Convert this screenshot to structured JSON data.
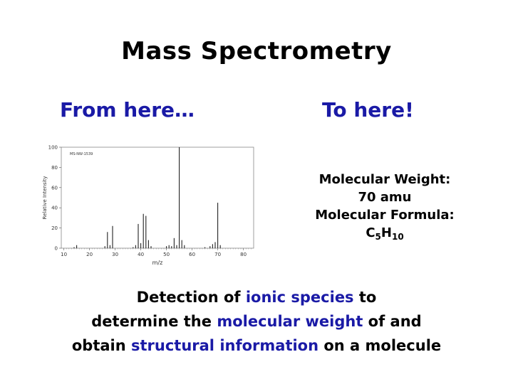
{
  "slide": {
    "title": "Mass Spectrometry",
    "from_label": "From here…",
    "to_label": "To here!"
  },
  "molecule": {
    "weight_label": "Molecular Weight:",
    "weight_value": "70 amu",
    "formula_label": "Molecular Formula:",
    "formula_c": "C",
    "formula_c_sub": "5",
    "formula_h": "H",
    "formula_h_sub": "10"
  },
  "description": {
    "p1": "Detection of ",
    "hl1": "ionic species",
    "p2": " to",
    "p3": "determine the ",
    "hl2": "molecular weight",
    "p4": " of and",
    "p5": "obtain ",
    "hl3": "structural information",
    "p6": " on a molecule"
  },
  "colors": {
    "accent": "#1a1aa6",
    "plot_frame": "#888888",
    "peak": "#222222"
  },
  "chart_data": {
    "type": "bar",
    "xlabel": "m/z",
    "ylabel": "Relative Intensity",
    "inset_label": "MS-NW-1539",
    "xlim": [
      9,
      84
    ],
    "ylim": [
      0,
      100
    ],
    "x_ticks": [
      10,
      20,
      30,
      40,
      50,
      60,
      70,
      80
    ],
    "y_ticks": [
      0,
      20,
      40,
      60,
      80,
      100
    ],
    "x": [
      14,
      15,
      26,
      27,
      28,
      29,
      37,
      38,
      39,
      40,
      41,
      42,
      43,
      44,
      50,
      51,
      52,
      53,
      54,
      55,
      56,
      57,
      65,
      67,
      68,
      69,
      70,
      71
    ],
    "values": [
      1,
      3,
      2,
      16,
      3,
      22,
      1,
      3,
      24,
      5,
      34,
      32,
      8,
      2,
      2,
      3,
      2,
      10,
      3,
      100,
      8,
      3,
      1,
      2,
      4,
      6,
      45,
      3
    ]
  }
}
